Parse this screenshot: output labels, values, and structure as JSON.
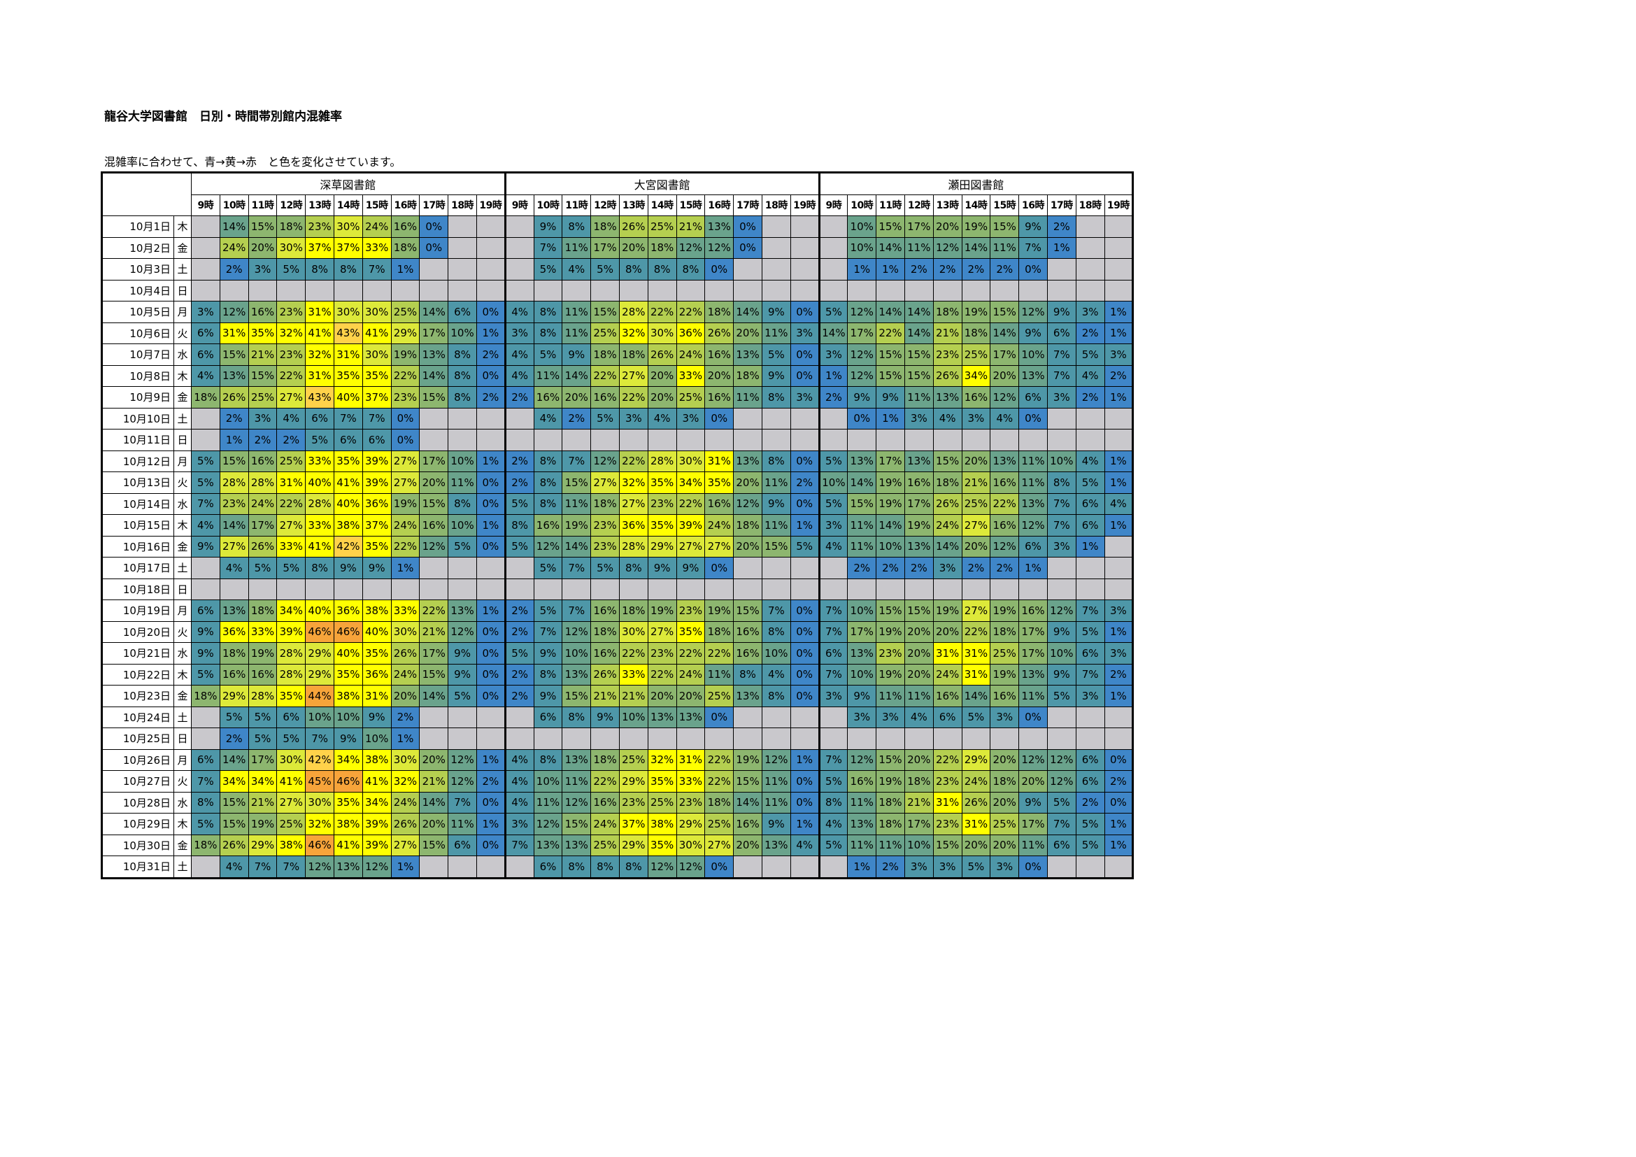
{
  "title": "龍谷大学図書館　日別・時間帯別館内混雑率",
  "note": "混雑率に合わせて、青→黄→赤　と色を変化させています。",
  "libraries": [
    "深草図書館",
    "大宮図書館",
    "瀬田図書館"
  ],
  "hours": [
    "9時",
    "10時",
    "11時",
    "12時",
    "13時",
    "14時",
    "15時",
    "16時",
    "17時",
    "18時",
    "19時"
  ],
  "colors": {
    "empty": "#c9c8cc",
    "scale": [
      "#3f86c8",
      "#4e97a8",
      "#6aa38c",
      "#8db66f",
      "#b5cf50",
      "#dde93a",
      "#ffff00",
      "#ffd24a",
      "#f7a43a"
    ]
  },
  "rows": [
    {
      "date": "10月1日",
      "dow": "木",
      "fukakusa": [
        "",
        "14%",
        "15%",
        "18%",
        "23%",
        "30%",
        "24%",
        "16%",
        "0%",
        "",
        ""
      ],
      "omiya": [
        "",
        "9%",
        "8%",
        "18%",
        "26%",
        "25%",
        "21%",
        "13%",
        "0%",
        "",
        ""
      ],
      "seta": [
        "",
        "10%",
        "15%",
        "17%",
        "20%",
        "19%",
        "15%",
        "9%",
        "2%",
        "",
        ""
      ]
    },
    {
      "date": "10月2日",
      "dow": "金",
      "fukakusa": [
        "",
        "24%",
        "20%",
        "30%",
        "37%",
        "37%",
        "33%",
        "18%",
        "0%",
        "",
        ""
      ],
      "omiya": [
        "",
        "7%",
        "11%",
        "17%",
        "20%",
        "18%",
        "12%",
        "12%",
        "0%",
        "",
        ""
      ],
      "seta": [
        "",
        "10%",
        "14%",
        "11%",
        "12%",
        "14%",
        "11%",
        "7%",
        "1%",
        "",
        ""
      ]
    },
    {
      "date": "10月3日",
      "dow": "土",
      "fukakusa": [
        "",
        "2%",
        "3%",
        "5%",
        "8%",
        "8%",
        "7%",
        "1%",
        "",
        "",
        ""
      ],
      "omiya": [
        "",
        "5%",
        "4%",
        "5%",
        "8%",
        "8%",
        "8%",
        "0%",
        "",
        "",
        ""
      ],
      "seta": [
        "",
        "1%",
        "1%",
        "2%",
        "2%",
        "2%",
        "2%",
        "0%",
        "",
        "",
        ""
      ]
    },
    {
      "date": "10月4日",
      "dow": "日",
      "fukakusa": [
        "",
        "",
        "",
        "",
        "",
        "",
        "",
        "",
        "",
        "",
        ""
      ],
      "omiya": [
        "",
        "",
        "",
        "",
        "",
        "",
        "",
        "",
        "",
        "",
        ""
      ],
      "seta": [
        "",
        "",
        "",
        "",
        "",
        "",
        "",
        "",
        "",
        "",
        ""
      ]
    },
    {
      "date": "10月5日",
      "dow": "月",
      "fukakusa": [
        "3%",
        "12%",
        "16%",
        "23%",
        "31%",
        "30%",
        "30%",
        "25%",
        "14%",
        "6%",
        "0%"
      ],
      "omiya": [
        "4%",
        "8%",
        "11%",
        "15%",
        "28%",
        "22%",
        "22%",
        "18%",
        "14%",
        "9%",
        "0%"
      ],
      "seta": [
        "5%",
        "12%",
        "14%",
        "14%",
        "18%",
        "19%",
        "15%",
        "12%",
        "9%",
        "3%",
        "1%"
      ]
    },
    {
      "date": "10月6日",
      "dow": "火",
      "fukakusa": [
        "6%",
        "31%",
        "35%",
        "32%",
        "41%",
        "43%",
        "41%",
        "29%",
        "17%",
        "10%",
        "1%"
      ],
      "omiya": [
        "3%",
        "8%",
        "11%",
        "25%",
        "32%",
        "30%",
        "36%",
        "26%",
        "20%",
        "11%",
        "3%"
      ],
      "seta": [
        "14%",
        "17%",
        "22%",
        "14%",
        "21%",
        "18%",
        "14%",
        "9%",
        "6%",
        "2%",
        "1%"
      ]
    },
    {
      "date": "10月7日",
      "dow": "水",
      "fukakusa": [
        "6%",
        "15%",
        "21%",
        "23%",
        "32%",
        "31%",
        "30%",
        "19%",
        "13%",
        "8%",
        "2%"
      ],
      "omiya": [
        "4%",
        "5%",
        "9%",
        "18%",
        "18%",
        "26%",
        "24%",
        "16%",
        "13%",
        "5%",
        "0%"
      ],
      "seta": [
        "3%",
        "12%",
        "15%",
        "15%",
        "23%",
        "25%",
        "17%",
        "10%",
        "7%",
        "5%",
        "3%"
      ]
    },
    {
      "date": "10月8日",
      "dow": "木",
      "fukakusa": [
        "4%",
        "13%",
        "15%",
        "22%",
        "31%",
        "35%",
        "35%",
        "22%",
        "14%",
        "8%",
        "0%"
      ],
      "omiya": [
        "4%",
        "11%",
        "14%",
        "22%",
        "27%",
        "20%",
        "33%",
        "20%",
        "18%",
        "9%",
        "0%"
      ],
      "seta": [
        "1%",
        "12%",
        "15%",
        "15%",
        "26%",
        "34%",
        "20%",
        "13%",
        "7%",
        "4%",
        "2%"
      ]
    },
    {
      "date": "10月9日",
      "dow": "金",
      "fukakusa": [
        "18%",
        "26%",
        "25%",
        "27%",
        "43%",
        "40%",
        "37%",
        "23%",
        "15%",
        "8%",
        "2%"
      ],
      "omiya": [
        "2%",
        "16%",
        "20%",
        "16%",
        "22%",
        "20%",
        "25%",
        "16%",
        "11%",
        "8%",
        "3%"
      ],
      "seta": [
        "2%",
        "9%",
        "9%",
        "11%",
        "13%",
        "16%",
        "12%",
        "6%",
        "3%",
        "2%",
        "1%"
      ]
    },
    {
      "date": "10月10日",
      "dow": "土",
      "fukakusa": [
        "",
        "2%",
        "3%",
        "4%",
        "6%",
        "7%",
        "7%",
        "0%",
        "",
        "",
        ""
      ],
      "omiya": [
        "",
        "4%",
        "2%",
        "5%",
        "3%",
        "4%",
        "3%",
        "0%",
        "",
        "",
        ""
      ],
      "seta": [
        "",
        "0%",
        "1%",
        "3%",
        "4%",
        "3%",
        "4%",
        "0%",
        "",
        "",
        ""
      ]
    },
    {
      "date": "10月11日",
      "dow": "日",
      "fukakusa": [
        "",
        "1%",
        "2%",
        "2%",
        "5%",
        "6%",
        "6%",
        "0%",
        "",
        "",
        ""
      ],
      "omiya": [
        "",
        "",
        "",
        "",
        "",
        "",
        "",
        "",
        "",
        "",
        ""
      ],
      "seta": [
        "",
        "",
        "",
        "",
        "",
        "",
        "",
        "",
        "",
        "",
        ""
      ]
    },
    {
      "date": "10月12日",
      "dow": "月",
      "fukakusa": [
        "5%",
        "15%",
        "16%",
        "25%",
        "33%",
        "35%",
        "39%",
        "27%",
        "17%",
        "10%",
        "1%"
      ],
      "omiya": [
        "2%",
        "8%",
        "7%",
        "12%",
        "22%",
        "28%",
        "30%",
        "31%",
        "13%",
        "8%",
        "0%"
      ],
      "seta": [
        "5%",
        "13%",
        "17%",
        "13%",
        "15%",
        "20%",
        "13%",
        "11%",
        "10%",
        "4%",
        "1%"
      ]
    },
    {
      "date": "10月13日",
      "dow": "火",
      "fukakusa": [
        "5%",
        "28%",
        "28%",
        "31%",
        "40%",
        "41%",
        "39%",
        "27%",
        "20%",
        "11%",
        "0%"
      ],
      "omiya": [
        "2%",
        "8%",
        "15%",
        "27%",
        "32%",
        "35%",
        "34%",
        "35%",
        "20%",
        "11%",
        "2%"
      ],
      "seta": [
        "10%",
        "14%",
        "19%",
        "16%",
        "18%",
        "21%",
        "16%",
        "11%",
        "8%",
        "5%",
        "1%"
      ]
    },
    {
      "date": "10月14日",
      "dow": "水",
      "fukakusa": [
        "7%",
        "23%",
        "24%",
        "22%",
        "28%",
        "40%",
        "36%",
        "19%",
        "15%",
        "8%",
        "0%"
      ],
      "omiya": [
        "5%",
        "8%",
        "11%",
        "18%",
        "27%",
        "23%",
        "22%",
        "16%",
        "12%",
        "9%",
        "0%"
      ],
      "seta": [
        "5%",
        "15%",
        "19%",
        "17%",
        "26%",
        "25%",
        "22%",
        "13%",
        "7%",
        "6%",
        "4%"
      ]
    },
    {
      "date": "10月15日",
      "dow": "木",
      "fukakusa": [
        "4%",
        "14%",
        "17%",
        "27%",
        "33%",
        "38%",
        "37%",
        "24%",
        "16%",
        "10%",
        "1%"
      ],
      "omiya": [
        "8%",
        "16%",
        "19%",
        "23%",
        "36%",
        "35%",
        "39%",
        "24%",
        "18%",
        "11%",
        "1%"
      ],
      "seta": [
        "3%",
        "11%",
        "14%",
        "19%",
        "24%",
        "27%",
        "16%",
        "12%",
        "7%",
        "6%",
        "1%"
      ]
    },
    {
      "date": "10月16日",
      "dow": "金",
      "fukakusa": [
        "9%",
        "27%",
        "26%",
        "33%",
        "41%",
        "42%",
        "35%",
        "22%",
        "12%",
        "5%",
        "0%"
      ],
      "omiya": [
        "5%",
        "12%",
        "14%",
        "23%",
        "28%",
        "29%",
        "27%",
        "27%",
        "20%",
        "15%",
        "5%"
      ],
      "seta": [
        "4%",
        "11%",
        "10%",
        "13%",
        "14%",
        "20%",
        "12%",
        "6%",
        "3%",
        "1%",
        ""
      ]
    },
    {
      "date": "10月17日",
      "dow": "土",
      "fukakusa": [
        "",
        "4%",
        "5%",
        "5%",
        "8%",
        "9%",
        "9%",
        "1%",
        "",
        "",
        ""
      ],
      "omiya": [
        "",
        "5%",
        "7%",
        "5%",
        "8%",
        "9%",
        "9%",
        "0%",
        "",
        "",
        ""
      ],
      "seta": [
        "",
        "2%",
        "2%",
        "2%",
        "3%",
        "2%",
        "2%",
        "1%",
        "",
        "",
        ""
      ]
    },
    {
      "date": "10月18日",
      "dow": "日",
      "fukakusa": [
        "",
        "",
        "",
        "",
        "",
        "",
        "",
        "",
        "",
        "",
        ""
      ],
      "omiya": [
        "",
        "",
        "",
        "",
        "",
        "",
        "",
        "",
        "",
        "",
        ""
      ],
      "seta": [
        "",
        "",
        "",
        "",
        "",
        "",
        "",
        "",
        "",
        "",
        ""
      ]
    },
    {
      "date": "10月19日",
      "dow": "月",
      "fukakusa": [
        "6%",
        "13%",
        "18%",
        "34%",
        "40%",
        "36%",
        "38%",
        "33%",
        "22%",
        "13%",
        "1%"
      ],
      "omiya": [
        "2%",
        "5%",
        "7%",
        "16%",
        "18%",
        "19%",
        "23%",
        "19%",
        "15%",
        "7%",
        "0%"
      ],
      "seta": [
        "7%",
        "10%",
        "15%",
        "15%",
        "19%",
        "27%",
        "19%",
        "16%",
        "12%",
        "7%",
        "3%"
      ]
    },
    {
      "date": "10月20日",
      "dow": "火",
      "fukakusa": [
        "9%",
        "36%",
        "33%",
        "39%",
        "46%",
        "46%",
        "40%",
        "30%",
        "21%",
        "12%",
        "0%"
      ],
      "omiya": [
        "2%",
        "7%",
        "12%",
        "18%",
        "30%",
        "27%",
        "35%",
        "18%",
        "16%",
        "8%",
        "0%"
      ],
      "seta": [
        "7%",
        "17%",
        "19%",
        "20%",
        "20%",
        "22%",
        "18%",
        "17%",
        "9%",
        "5%",
        "1%"
      ]
    },
    {
      "date": "10月21日",
      "dow": "水",
      "fukakusa": [
        "9%",
        "18%",
        "19%",
        "28%",
        "29%",
        "40%",
        "35%",
        "26%",
        "17%",
        "9%",
        "0%"
      ],
      "omiya": [
        "5%",
        "9%",
        "10%",
        "16%",
        "22%",
        "23%",
        "22%",
        "22%",
        "16%",
        "10%",
        "0%"
      ],
      "seta": [
        "6%",
        "13%",
        "23%",
        "20%",
        "31%",
        "31%",
        "25%",
        "17%",
        "10%",
        "6%",
        "3%"
      ]
    },
    {
      "date": "10月22日",
      "dow": "木",
      "fukakusa": [
        "5%",
        "16%",
        "16%",
        "28%",
        "29%",
        "35%",
        "36%",
        "24%",
        "15%",
        "9%",
        "0%"
      ],
      "omiya": [
        "2%",
        "8%",
        "13%",
        "26%",
        "33%",
        "22%",
        "24%",
        "11%",
        "8%",
        "4%",
        "0%"
      ],
      "seta": [
        "7%",
        "10%",
        "19%",
        "20%",
        "24%",
        "31%",
        "19%",
        "13%",
        "9%",
        "7%",
        "2%"
      ]
    },
    {
      "date": "10月23日",
      "dow": "金",
      "fukakusa": [
        "18%",
        "29%",
        "28%",
        "35%",
        "44%",
        "38%",
        "31%",
        "20%",
        "14%",
        "5%",
        "0%"
      ],
      "omiya": [
        "2%",
        "9%",
        "15%",
        "21%",
        "21%",
        "20%",
        "20%",
        "25%",
        "13%",
        "8%",
        "0%"
      ],
      "seta": [
        "3%",
        "9%",
        "11%",
        "11%",
        "16%",
        "14%",
        "16%",
        "11%",
        "5%",
        "3%",
        "1%"
      ]
    },
    {
      "date": "10月24日",
      "dow": "土",
      "fukakusa": [
        "",
        "5%",
        "5%",
        "6%",
        "10%",
        "10%",
        "9%",
        "2%",
        "",
        "",
        ""
      ],
      "omiya": [
        "",
        "6%",
        "8%",
        "9%",
        "10%",
        "13%",
        "13%",
        "0%",
        "",
        "",
        ""
      ],
      "seta": [
        "",
        "3%",
        "3%",
        "4%",
        "6%",
        "5%",
        "3%",
        "0%",
        "",
        "",
        ""
      ]
    },
    {
      "date": "10月25日",
      "dow": "日",
      "fukakusa": [
        "",
        "2%",
        "5%",
        "5%",
        "7%",
        "9%",
        "10%",
        "1%",
        "",
        "",
        ""
      ],
      "omiya": [
        "",
        "",
        "",
        "",
        "",
        "",
        "",
        "",
        "",
        "",
        ""
      ],
      "seta": [
        "",
        "",
        "",
        "",
        "",
        "",
        "",
        "",
        "",
        "",
        ""
      ]
    },
    {
      "date": "10月26日",
      "dow": "月",
      "fukakusa": [
        "6%",
        "14%",
        "17%",
        "30%",
        "42%",
        "34%",
        "38%",
        "30%",
        "20%",
        "12%",
        "1%"
      ],
      "omiya": [
        "4%",
        "8%",
        "13%",
        "18%",
        "25%",
        "32%",
        "31%",
        "22%",
        "19%",
        "12%",
        "1%"
      ],
      "seta": [
        "7%",
        "12%",
        "15%",
        "20%",
        "22%",
        "29%",
        "20%",
        "12%",
        "12%",
        "6%",
        "0%"
      ]
    },
    {
      "date": "10月27日",
      "dow": "火",
      "fukakusa": [
        "7%",
        "34%",
        "34%",
        "41%",
        "45%",
        "46%",
        "41%",
        "32%",
        "21%",
        "12%",
        "2%"
      ],
      "omiya": [
        "4%",
        "10%",
        "11%",
        "22%",
        "29%",
        "35%",
        "33%",
        "22%",
        "15%",
        "11%",
        "0%"
      ],
      "seta": [
        "5%",
        "16%",
        "19%",
        "18%",
        "23%",
        "24%",
        "18%",
        "20%",
        "12%",
        "6%",
        "2%"
      ]
    },
    {
      "date": "10月28日",
      "dow": "水",
      "fukakusa": [
        "8%",
        "15%",
        "21%",
        "27%",
        "30%",
        "35%",
        "34%",
        "24%",
        "14%",
        "7%",
        "0%"
      ],
      "omiya": [
        "4%",
        "11%",
        "12%",
        "16%",
        "23%",
        "25%",
        "23%",
        "18%",
        "14%",
        "11%",
        "0%"
      ],
      "seta": [
        "8%",
        "11%",
        "18%",
        "21%",
        "31%",
        "26%",
        "20%",
        "9%",
        "5%",
        "2%",
        "0%"
      ]
    },
    {
      "date": "10月29日",
      "dow": "木",
      "fukakusa": [
        "5%",
        "15%",
        "19%",
        "25%",
        "32%",
        "38%",
        "39%",
        "26%",
        "20%",
        "11%",
        "1%"
      ],
      "omiya": [
        "3%",
        "12%",
        "15%",
        "24%",
        "37%",
        "38%",
        "29%",
        "25%",
        "16%",
        "9%",
        "1%"
      ],
      "seta": [
        "4%",
        "13%",
        "18%",
        "17%",
        "23%",
        "31%",
        "25%",
        "17%",
        "7%",
        "5%",
        "1%"
      ]
    },
    {
      "date": "10月30日",
      "dow": "金",
      "fukakusa": [
        "18%",
        "26%",
        "29%",
        "38%",
        "46%",
        "41%",
        "39%",
        "27%",
        "15%",
        "6%",
        "0%"
      ],
      "omiya": [
        "7%",
        "13%",
        "13%",
        "25%",
        "29%",
        "35%",
        "30%",
        "27%",
        "20%",
        "13%",
        "4%"
      ],
      "seta": [
        "5%",
        "11%",
        "11%",
        "10%",
        "15%",
        "20%",
        "20%",
        "11%",
        "6%",
        "5%",
        "1%"
      ]
    },
    {
      "date": "10月31日",
      "dow": "土",
      "fukakusa": [
        "",
        "4%",
        "7%",
        "7%",
        "12%",
        "13%",
        "12%",
        "1%",
        "",
        "",
        ""
      ],
      "omiya": [
        "",
        "6%",
        "8%",
        "8%",
        "8%",
        "12%",
        "12%",
        "0%",
        "",
        "",
        ""
      ],
      "seta": [
        "",
        "1%",
        "2%",
        "3%",
        "3%",
        "5%",
        "3%",
        "0%",
        "",
        "",
        ""
      ]
    }
  ]
}
